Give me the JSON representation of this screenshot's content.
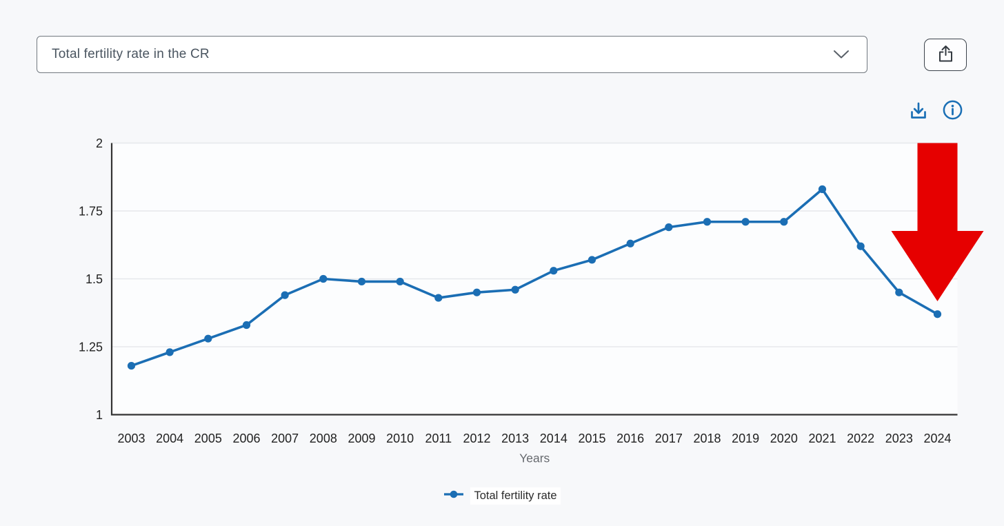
{
  "controls": {
    "indicator_select": {
      "value": "Total fertility rate in the CR",
      "chevron_icon": "chevron-down"
    },
    "share_button": {
      "icon": "share-export"
    },
    "toolbar": {
      "download_icon": "download-chart",
      "info_icon": "info-circle"
    }
  },
  "colors": {
    "page_bg": "#f7f8fa",
    "plot_bg": "#fcfdfe",
    "series_blue": "#1b6eb4",
    "annotation_red": "#e60000",
    "axis": "#333333",
    "grid": "#e6e8eb",
    "tick_text": "#222222",
    "axis_title_text": "#66696e",
    "icon_blue": "#1a6fb5"
  },
  "chart_data": {
    "type": "line",
    "title": "",
    "xlabel": "Years",
    "ylabel": "",
    "categories": [
      "2003",
      "2004",
      "2005",
      "2006",
      "2007",
      "2008",
      "2009",
      "2010",
      "2011",
      "2012",
      "2013",
      "2014",
      "2015",
      "2016",
      "2017",
      "2018",
      "2019",
      "2020",
      "2021",
      "2022",
      "2023",
      "2024"
    ],
    "series": [
      {
        "name": "Total fertility rate",
        "values": [
          1.18,
          1.23,
          1.28,
          1.33,
          1.44,
          1.5,
          1.49,
          1.49,
          1.43,
          1.45,
          1.46,
          1.53,
          1.57,
          1.63,
          1.69,
          1.71,
          1.71,
          1.71,
          1.83,
          1.62,
          1.45,
          1.37
        ]
      }
    ],
    "ylim": [
      1,
      2
    ],
    "y_ticks": [
      1,
      1.25,
      1.5,
      1.75,
      2
    ],
    "y_tick_labels": [
      "1",
      "1.25",
      "1.5",
      "1.75",
      "2"
    ],
    "grid": true,
    "legend_position": "bottom",
    "annotation": {
      "type": "arrow-down",
      "color": "#e60000",
      "target_category": "2024",
      "meaning": "highlights drop at last data point"
    }
  }
}
